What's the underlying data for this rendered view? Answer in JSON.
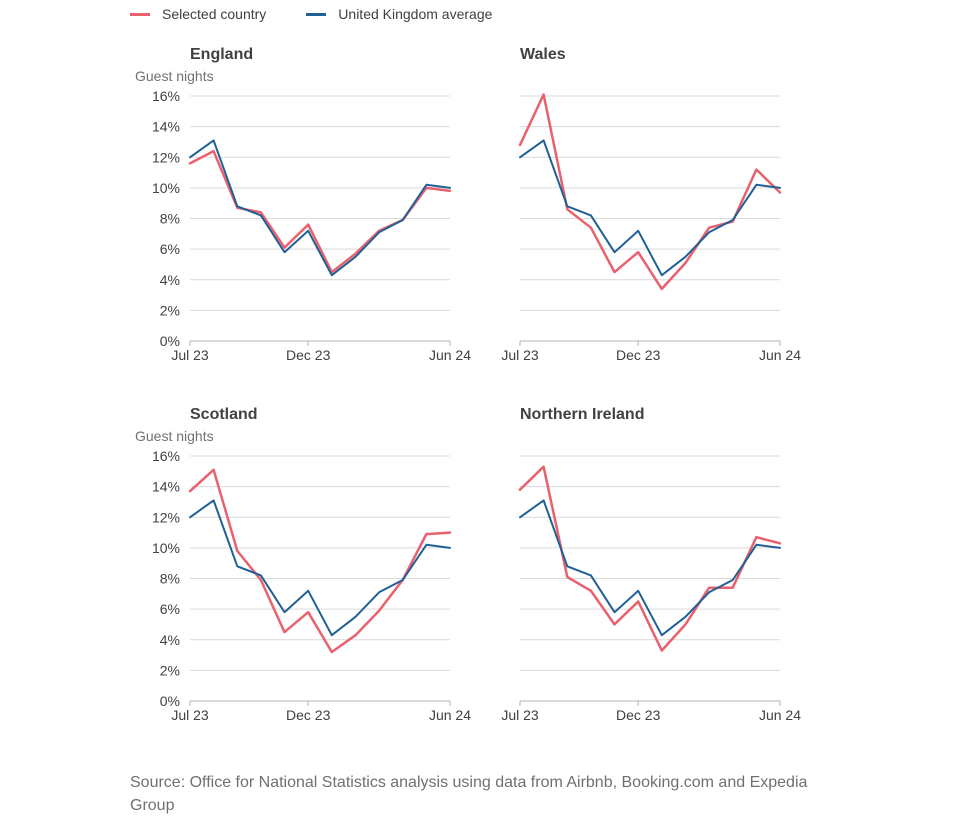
{
  "legend": {
    "selected_label": "Selected country",
    "average_label": "United Kingdom average",
    "selected_color": "#e8616d",
    "average_color": "#206095"
  },
  "source_note": "Source: Office for National Statistics analysis using data from Airbnb, Booking.com and Expedia Group",
  "chart_data": [
    {
      "type": "line",
      "title": "England",
      "ylabel": "Guest nights",
      "x": [
        "Jul 23",
        "Aug 23",
        "Sep 23",
        "Oct 23",
        "Nov 23",
        "Dec 23",
        "Jan 24",
        "Feb 24",
        "Mar 24",
        "Apr 24",
        "May 24",
        "Jun 24"
      ],
      "xticks": [
        "Jul 23",
        "Dec 23",
        "Jun 24"
      ],
      "yticks": [
        "0%",
        "2%",
        "4%",
        "6%",
        "8%",
        "10%",
        "12%",
        "14%",
        "16%"
      ],
      "ylim": [
        0,
        16
      ],
      "series": [
        {
          "name": "Selected country",
          "values": [
            11.6,
            12.4,
            8.7,
            8.4,
            6.1,
            7.6,
            4.5,
            5.7,
            7.2,
            7.9,
            10.0,
            9.8
          ]
        },
        {
          "name": "United Kingdom average",
          "values": [
            12.0,
            13.1,
            8.8,
            8.2,
            5.8,
            7.2,
            4.3,
            5.5,
            7.1,
            7.9,
            10.2,
            10.0
          ]
        }
      ]
    },
    {
      "type": "line",
      "title": "Wales",
      "ylabel": "",
      "x": [
        "Jul 23",
        "Aug 23",
        "Sep 23",
        "Oct 23",
        "Nov 23",
        "Dec 23",
        "Jan 24",
        "Feb 24",
        "Mar 24",
        "Apr 24",
        "May 24",
        "Jun 24"
      ],
      "xticks": [
        "Jul 23",
        "Dec 23",
        "Jun 24"
      ],
      "yticks": [],
      "ylim": [
        0,
        16
      ],
      "series": [
        {
          "name": "Selected country",
          "values": [
            12.8,
            16.1,
            8.6,
            7.4,
            4.5,
            5.8,
            3.4,
            5.1,
            7.4,
            7.8,
            11.2,
            9.7
          ]
        },
        {
          "name": "United Kingdom average",
          "values": [
            12.0,
            13.1,
            8.8,
            8.2,
            5.8,
            7.2,
            4.3,
            5.5,
            7.1,
            7.9,
            10.2,
            10.0
          ]
        }
      ]
    },
    {
      "type": "line",
      "title": "Scotland",
      "ylabel": "Guest nights",
      "x": [
        "Jul 23",
        "Aug 23",
        "Sep 23",
        "Oct 23",
        "Nov 23",
        "Dec 23",
        "Jan 24",
        "Feb 24",
        "Mar 24",
        "Apr 24",
        "May 24",
        "Jun 24"
      ],
      "xticks": [
        "Jul 23",
        "Dec 23",
        "Jun 24"
      ],
      "yticks": [
        "0%",
        "2%",
        "4%",
        "6%",
        "8%",
        "10%",
        "12%",
        "14%",
        "16%"
      ],
      "ylim": [
        0,
        16
      ],
      "series": [
        {
          "name": "Selected country",
          "values": [
            13.7,
            15.1,
            9.8,
            7.9,
            4.5,
            5.8,
            3.2,
            4.3,
            5.9,
            7.9,
            10.9,
            11.0
          ]
        },
        {
          "name": "United Kingdom average",
          "values": [
            12.0,
            13.1,
            8.8,
            8.2,
            5.8,
            7.2,
            4.3,
            5.5,
            7.1,
            7.9,
            10.2,
            10.0
          ]
        }
      ]
    },
    {
      "type": "line",
      "title": "Northern Ireland",
      "ylabel": "",
      "x": [
        "Jul 23",
        "Aug 23",
        "Sep 23",
        "Oct 23",
        "Nov 23",
        "Dec 23",
        "Jan 24",
        "Feb 24",
        "Mar 24",
        "Apr 24",
        "May 24",
        "Jun 24"
      ],
      "xticks": [
        "Jul 23",
        "Dec 23",
        "Jun 24"
      ],
      "yticks": [],
      "ylim": [
        0,
        16
      ],
      "series": [
        {
          "name": "Selected country",
          "values": [
            13.8,
            15.3,
            8.1,
            7.2,
            5.0,
            6.5,
            3.3,
            5.0,
            7.4,
            7.4,
            10.7,
            10.3
          ]
        },
        {
          "name": "United Kingdom average",
          "values": [
            12.0,
            13.1,
            8.8,
            8.2,
            5.8,
            7.2,
            4.3,
            5.5,
            7.1,
            7.9,
            10.2,
            10.0
          ]
        }
      ]
    }
  ]
}
